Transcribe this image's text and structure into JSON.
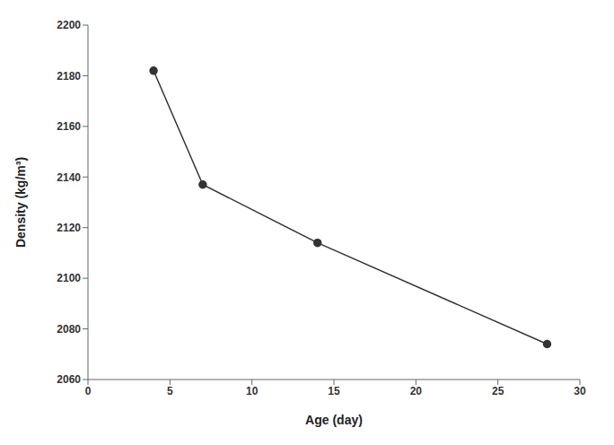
{
  "chart_data": {
    "type": "line",
    "x": [
      4,
      7,
      14,
      28
    ],
    "values": [
      2182,
      2137,
      2114,
      2074
    ],
    "xlabel": "Age (day)",
    "ylabel": "Density (kg/m³)",
    "xlim": [
      0,
      30
    ],
    "ylim": [
      2060,
      2200
    ],
    "xticks": [
      0,
      5,
      10,
      15,
      20,
      25,
      30
    ],
    "yticks": [
      2060,
      2080,
      2100,
      2120,
      2140,
      2160,
      2180,
      2200
    ],
    "color": "#333333",
    "marker": "circle",
    "grid": false
  }
}
